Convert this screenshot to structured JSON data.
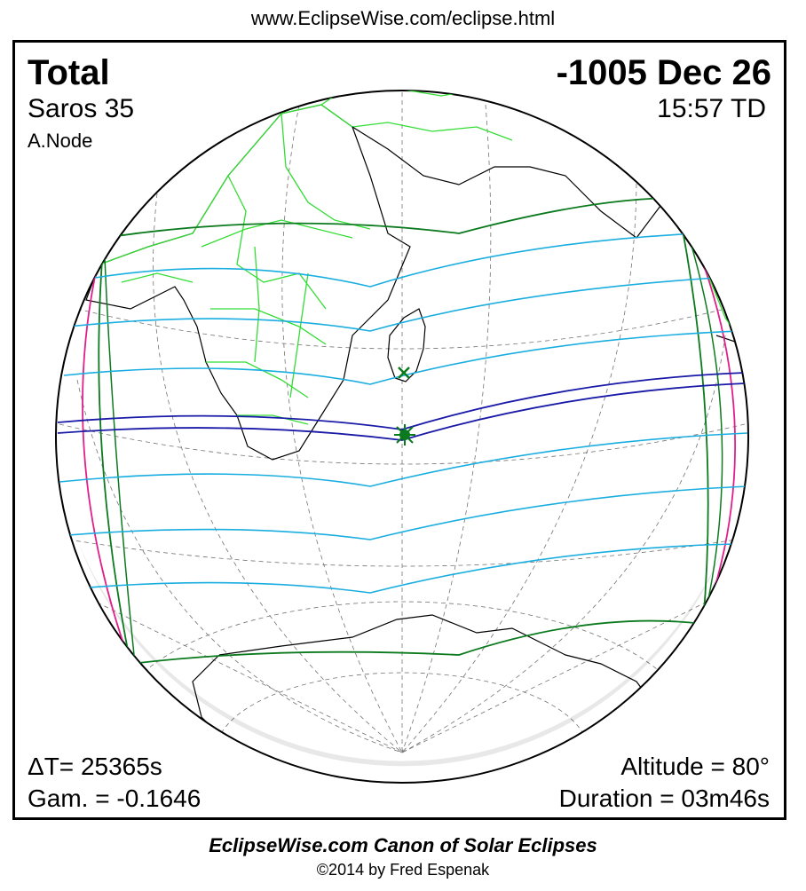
{
  "header": {
    "url": "www.EclipseWise.com/eclipse.html"
  },
  "eclipse": {
    "type": "Total",
    "date": "-1005 Dec 26",
    "saros": "Saros  35",
    "time": "15:57 TD",
    "node": "A.Node",
    "delta_t": "ΔT=  25365s",
    "gamma": "Gam. = -0.1646",
    "altitude": "Altitude = 80°",
    "duration": "Duration = 03m46s"
  },
  "footer": {
    "canon": "EclipseWise.com Canon of Solar Eclipses",
    "copyright": "©2014 by Fred Espenak"
  },
  "colors": {
    "umbral_path": "#1a1aa8",
    "penumbral_lines": "#1aaee0",
    "penumbral_limits": "#0b7a1e",
    "rise_set_curves": "#e0208a",
    "borders": "#33dd33",
    "coastlines": "#000000",
    "graticule": "#000000"
  },
  "markers": {
    "greatest_eclipse": "star-marker",
    "greatest_duration": "x-marker"
  }
}
